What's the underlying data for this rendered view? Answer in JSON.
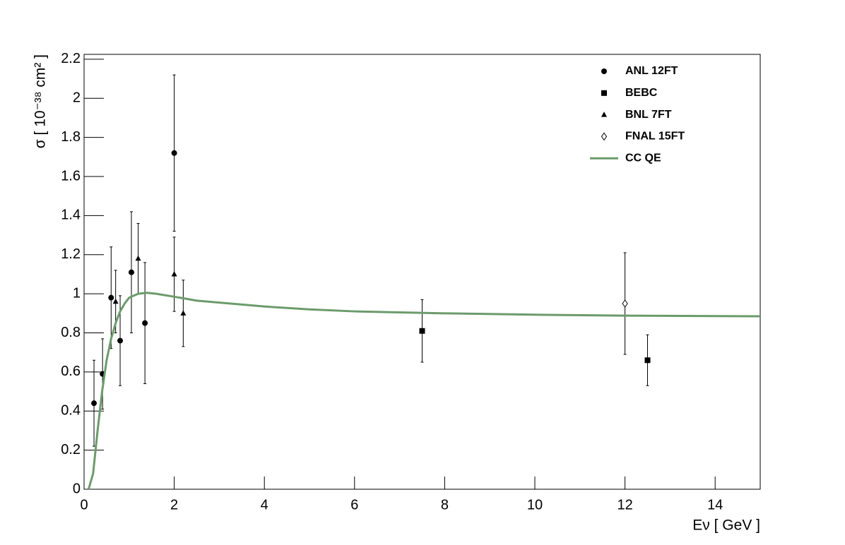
{
  "chart_data": {
    "type": "scatter",
    "x_label": "Eν  [ GeV ]",
    "y_label": "σ  [ 10⁻³⁸ cm² ]",
    "xlim": [
      0,
      15
    ],
    "ylim": [
      0,
      2.225
    ],
    "xticks": [
      0,
      2,
      4,
      6,
      8,
      10,
      12,
      14
    ],
    "yticks": [
      0,
      0.2,
      0.4,
      0.6,
      0.8,
      1,
      1.2,
      1.4,
      1.6,
      1.8,
      2,
      2.2
    ],
    "legend": "top-right",
    "series": [
      {
        "name": "ANL 12FT",
        "marker": "circle",
        "color": "#000000",
        "x": [
          0.22,
          0.41,
          0.6,
          0.8,
          1.05,
          1.35,
          2.0
        ],
        "values": [
          0.44,
          0.59,
          0.98,
          0.76,
          1.11,
          0.85,
          1.72
        ],
        "errors": [
          0.22,
          0.18,
          0.26,
          0.23,
          0.31,
          0.31,
          0.4
        ]
      },
      {
        "name": "BEBC",
        "marker": "square",
        "color": "#000000",
        "x": [
          7.5,
          12.5
        ],
        "values": [
          0.81,
          0.66
        ],
        "errors": [
          0.16,
          0.13
        ]
      },
      {
        "name": "BNL 7FT",
        "marker": "triangle",
        "color": "#000000",
        "x": [
          0.7,
          1.2,
          2.0,
          2.2
        ],
        "values": [
          0.96,
          1.18,
          1.1,
          0.9
        ],
        "errors": [
          0.16,
          0.18,
          0.19,
          0.17
        ]
      },
      {
        "name": "FNAL 15FT",
        "marker": "open-diamond",
        "color": "#000000",
        "x": [
          12
        ],
        "values": [
          0.95
        ],
        "errors": [
          0.26
        ]
      },
      {
        "name": "CC QE",
        "marker": "line",
        "color": "#6b9b6b",
        "x": [
          0.1,
          0.2,
          0.3,
          0.4,
          0.5,
          0.6,
          0.7,
          0.8,
          0.9,
          1.0,
          1.2,
          1.4,
          1.6,
          2.0,
          2.5,
          3,
          4,
          5,
          6,
          8,
          10,
          12,
          15
        ],
        "values": [
          0,
          0.08,
          0.3,
          0.5,
          0.66,
          0.77,
          0.85,
          0.91,
          0.95,
          0.98,
          1.0,
          1.005,
          1.0,
          0.985,
          0.965,
          0.955,
          0.935,
          0.92,
          0.91,
          0.9,
          0.893,
          0.888,
          0.885
        ]
      }
    ]
  }
}
